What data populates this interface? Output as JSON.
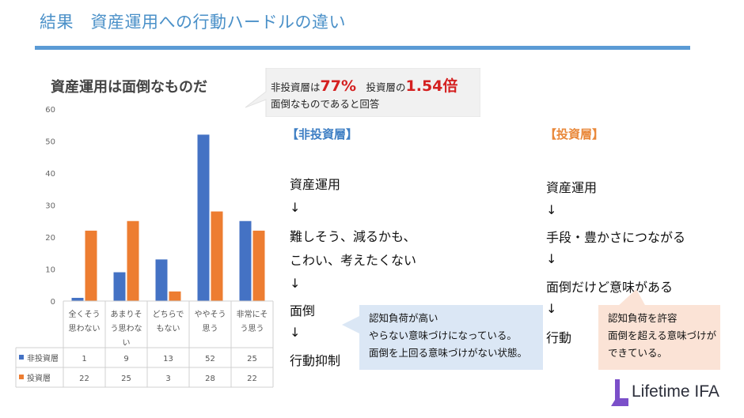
{
  "slide": {
    "title": "結果　資産運用への行動ハードルの違い"
  },
  "chart_data": {
    "type": "bar",
    "title": "資産運用は面倒なものだ",
    "categories": [
      [
        "全くそう",
        "思わない"
      ],
      [
        "あまりそ",
        "う思わな",
        "い"
      ],
      [
        "どちらで",
        "もない"
      ],
      [
        "ややそう",
        "思う"
      ],
      [
        "非常にそ",
        "う思う"
      ]
    ],
    "series": [
      {
        "name": "非投資層",
        "color": "#4472c4",
        "values": [
          1,
          9,
          13,
          52,
          25
        ]
      },
      {
        "name": "投資層",
        "color": "#ed7d31",
        "values": [
          22,
          25,
          3,
          28,
          22
        ]
      }
    ],
    "ylim": [
      0,
      60
    ],
    "yticks": [
      "0",
      "10",
      "20",
      "30",
      "40",
      "50",
      "60"
    ],
    "table_values": [
      [
        "1",
        "9",
        "13",
        "52",
        "25"
      ],
      [
        "22",
        "25",
        "3",
        "28",
        "22"
      ]
    ],
    "grid": false,
    "legend": "data-table"
  },
  "callout": {
    "prefix": "非投資層は",
    "pct": "77%",
    "mid": "　投資層の",
    "ratio": "1.54倍",
    "line2": "面倒なものであると回答"
  },
  "non_investor": {
    "heading": "【非投資層】",
    "heading_color": "#3f7fc4",
    "lines": [
      "資産運用",
      "↓",
      "難しそう、減るかも、",
      "こわい、考えたくない",
      "↓",
      "面倒",
      "↓",
      "行動抑制"
    ],
    "note": [
      "認知負荷が高い",
      "やらない意味づけになっている。",
      "面倒を上回る意味づけがない状態。"
    ]
  },
  "investor": {
    "heading": "【投資層】",
    "heading_color": "#e9883a",
    "lines": [
      "資産運用",
      "↓",
      "手段・豊かさにつながる",
      "↓",
      "面倒だけど意味がある",
      "↓",
      "行動"
    ],
    "note": [
      "認知負荷を許容",
      "面倒を超える意味づけが",
      "できている。"
    ]
  },
  "logo": {
    "text": "Lifetime IFA",
    "color": "#7b4fc9"
  }
}
